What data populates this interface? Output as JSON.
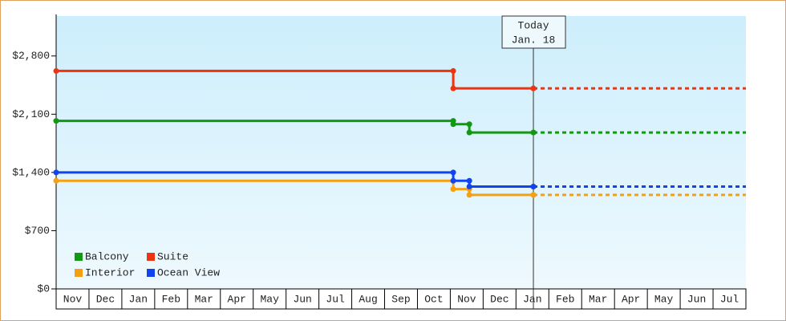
{
  "chart_data": {
    "type": "step-line",
    "categories": [
      "Nov",
      "Dec",
      "Jan",
      "Feb",
      "Mar",
      "Apr",
      "May",
      "Jun",
      "Jul",
      "Aug",
      "Sep",
      "Oct",
      "Nov",
      "Dec",
      "Jan",
      "Feb",
      "Mar",
      "Apr",
      "May",
      "Jun",
      "Jul"
    ],
    "xlim": [
      0,
      21
    ],
    "ylim": [
      0,
      3280
    ],
    "yticks": [
      {
        "value": 0,
        "label": "$0"
      },
      {
        "value": 700,
        "label": "$700"
      },
      {
        "value": 1400,
        "label": "$1,400"
      },
      {
        "value": 2100,
        "label": "$2,100"
      },
      {
        "value": 2800,
        "label": "$2,800"
      }
    ],
    "series": [
      {
        "name": "Balcony",
        "color": "#119911",
        "x": [
          0,
          12.09,
          12.58,
          14.53
        ],
        "values": [
          2020,
          1980,
          1880,
          1880
        ]
      },
      {
        "name": "Suite",
        "color": "#ee3311",
        "x": [
          0,
          12.09,
          14.53
        ],
        "values": [
          2620,
          2410,
          2410
        ]
      },
      {
        "name": "Interior",
        "color": "#f5a011",
        "x": [
          0,
          12.09,
          12.58,
          14.53
        ],
        "values": [
          1300,
          1200,
          1130,
          1130
        ]
      },
      {
        "name": "Ocean View",
        "color": "#1144ee",
        "x": [
          0,
          12.09,
          12.58,
          14.53
        ],
        "values": [
          1400,
          1300,
          1230,
          1230
        ]
      }
    ],
    "annotation": {
      "x": 14.53,
      "lines": [
        "Today",
        "Jan. 18"
      ]
    },
    "legend": "bottom-left"
  }
}
